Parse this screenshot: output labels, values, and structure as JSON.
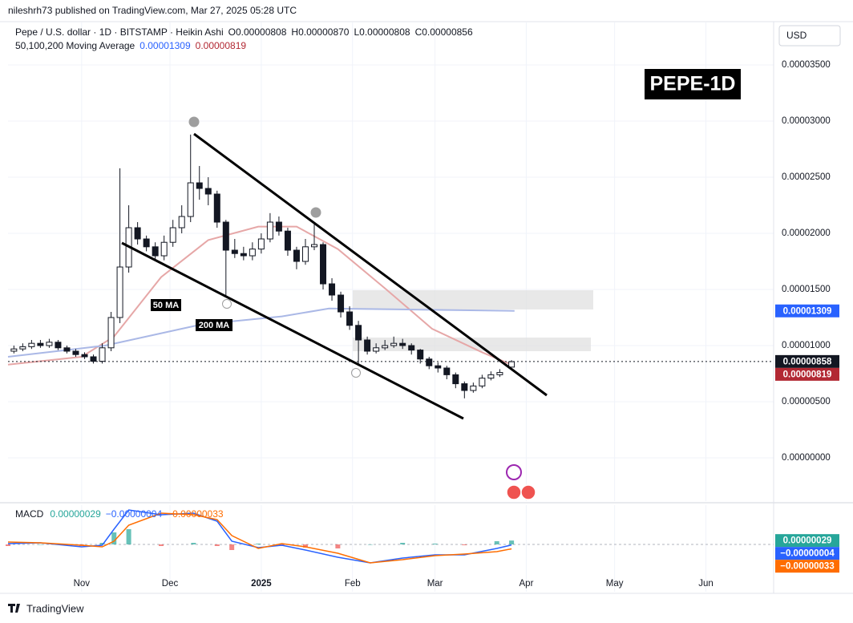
{
  "header": "nileshrh73 published on TradingView.com, Mar 27, 2025 05:28 UTC",
  "currency": "USD",
  "badge": "PEPE-1D",
  "footer": "TradingView",
  "chart_data": [
    {
      "type": "candlestick",
      "title": "Pepe / U.S. dollar · 1D · BITSTAMP · Heikin Ashi",
      "ohlc_letters": [
        "O",
        "H",
        "L",
        "C"
      ],
      "ohlc": [
        {
          "value": 8.08e-06,
          "label": "0.00000808"
        },
        {
          "value": 8.7e-06,
          "label": "0.00000870"
        },
        {
          "value": 8.08e-06,
          "label": "0.00000808"
        },
        {
          "value": 8.56e-06,
          "label": "0.00000856"
        }
      ],
      "ma_title": "50,100,200 Moving Average",
      "color": "#131722",
      "x": [
        -84,
        -81,
        -78,
        -75,
        -72,
        -69,
        -66,
        -63,
        -60,
        -57,
        -54,
        -51,
        -48,
        -45,
        -42,
        -39,
        -36,
        -33,
        -30,
        -27,
        -24,
        -21,
        -18,
        -15,
        -12,
        -9,
        -6,
        -3,
        0,
        3,
        6,
        9,
        12,
        15,
        18,
        21,
        24,
        27,
        30,
        33,
        36,
        39,
        42,
        45,
        48,
        51,
        54,
        57,
        60,
        63,
        66,
        69,
        72,
        75,
        78,
        81,
        85
      ],
      "open": [
        9.5e-06,
        9.7e-06,
        9.9e-06,
        1.02e-05,
        1e-05,
        1.03e-05,
        9.8e-06,
        9.5e-06,
        9.2e-06,
        9e-06,
        8.6e-06,
        9.8e-06,
        1.25e-05,
        1.7e-05,
        2.05e-05,
        1.95e-05,
        1.88e-05,
        1.8e-05,
        1.92e-05,
        2.05e-05,
        2.15e-05,
        2.45e-05,
        2.4e-05,
        2.35e-05,
        2.1e-05,
        1.85e-05,
        1.82e-05,
        1.8e-05,
        1.86e-05,
        1.95e-05,
        2.1e-05,
        2.02e-05,
        1.85e-05,
        1.75e-05,
        1.88e-05,
        1.9e-05,
        1.55e-05,
        1.45e-05,
        1.3e-05,
        1.18e-05,
        1.05e-05,
        9.5e-06,
        9.8e-06,
        1e-05,
        1.02e-05,
        1e-05,
        9.6e-06,
        8.8e-06,
        8.2e-06,
        8e-06,
        7.4e-06,
        6.6e-06,
        6e-06,
        6.4e-06,
        7.1e-06,
        7.4e-06,
        8.08e-06
      ],
      "high": [
        1e-05,
        1.02e-05,
        1.05e-05,
        1.05e-05,
        1.06e-05,
        1.05e-05,
        1e-05,
        9.7e-06,
        9.4e-06,
        9.2e-06,
        1.02e-05,
        1.3e-05,
        2.58e-05,
        2.25e-05,
        2.1e-05,
        1.98e-05,
        1.92e-05,
        1.98e-05,
        2.12e-05,
        2.25e-05,
        2.88e-05,
        2.6e-05,
        2.5e-05,
        2.38e-05,
        2.12e-05,
        1.95e-05,
        1.88e-05,
        1.92e-05,
        2e-05,
        2.18e-05,
        2.15e-05,
        2.05e-05,
        1.88e-05,
        1.95e-05,
        2.1e-05,
        1.92e-05,
        1.6e-05,
        1.48e-05,
        1.35e-05,
        1.22e-05,
        1.08e-05,
        1.02e-05,
        1.05e-05,
        1.08e-05,
        1.06e-05,
        1.02e-05,
        9.7e-06,
        9e-06,
        8.5e-06,
        8.2e-06,
        7.6e-06,
        6.8e-06,
        6.7e-06,
        7.4e-06,
        7.7e-06,
        7.9e-06,
        8.7e-06
      ],
      "low": [
        9.3e-06,
        9.5e-06,
        9.7e-06,
        9.8e-06,
        9.8e-06,
        9.6e-06,
        9.3e-06,
        9e-06,
        8.8e-06,
        8.4e-06,
        8.4e-06,
        9.5e-06,
        1.2e-05,
        1.65e-05,
        1.9e-05,
        1.84e-05,
        1.75e-05,
        1.76e-05,
        1.88e-05,
        2e-05,
        2.1e-05,
        2.3e-05,
        2.25e-05,
        2.05e-05,
        1.43e-05,
        1.78e-05,
        1.76e-05,
        1.76e-05,
        1.82e-05,
        1.92e-05,
        1.98e-05,
        1.8e-05,
        1.68e-05,
        1.72e-05,
        1.85e-05,
        1.5e-05,
        1.4e-05,
        1.25e-05,
        1.14e-05,
        8.2e-06,
        9.2e-06,
        9.3e-06,
        9.6e-06,
        9.8e-06,
        9.7e-06,
        9.2e-06,
        8.4e-06,
        7.9e-06,
        7.6e-06,
        7e-06,
        6.2e-06,
        5.3e-06,
        5.8e-06,
        6.2e-06,
        6.9e-06,
        7.2e-06,
        8.08e-06
      ],
      "close": [
        9.7e-06,
        9.9e-06,
        1.02e-05,
        1e-05,
        1.03e-05,
        9.8e-06,
        9.5e-06,
        9.2e-06,
        9e-06,
        8.6e-06,
        9.8e-06,
        1.25e-05,
        1.7e-05,
        2.05e-05,
        1.95e-05,
        1.88e-05,
        1.8e-05,
        1.92e-05,
        2.05e-05,
        2.15e-05,
        2.45e-05,
        2.4e-05,
        2.35e-05,
        2.1e-05,
        1.85e-05,
        1.82e-05,
        1.8e-05,
        1.86e-05,
        1.95e-05,
        2.1e-05,
        2.02e-05,
        1.85e-05,
        1.75e-05,
        1.88e-05,
        1.9e-05,
        1.55e-05,
        1.45e-05,
        1.3e-05,
        1.18e-05,
        1.05e-05,
        9.5e-06,
        9.8e-06,
        1e-05,
        1.02e-05,
        1e-05,
        9.6e-06,
        8.8e-06,
        8.2e-06,
        8e-06,
        7.4e-06,
        6.6e-06,
        6e-06,
        6.4e-06,
        7.1e-06,
        7.4e-06,
        7.6e-06,
        8.56e-06
      ],
      "series": [
        {
          "name": "50 MA",
          "color": "#e6a7a7",
          "x": [
            -86,
            -61,
            -50,
            -34,
            -18,
            -1,
            12,
            26,
            42,
            58,
            75,
            86
          ],
          "values": [
            8.3e-06,
            9e-06,
            1.08e-05,
            1.61e-05,
            1.94e-05,
            2.06e-05,
            2.06e-05,
            1.86e-05,
            1.51e-05,
            1.15e-05,
            9.4e-06,
            8.19e-06
          ]
        },
        {
          "name": "200 MA",
          "color": "#aab8e6",
          "x": [
            -86,
            -53,
            -20,
            7,
            23,
            86
          ],
          "values": [
            9e-06,
            1e-05,
            1.19e-05,
            1.26e-05,
            1.33e-05,
            1.309e-05
          ]
        }
      ],
      "last_labels": [
        {
          "value": 1.309e-05,
          "color": "#2962ff"
        },
        {
          "value": 8.58e-06,
          "color": "#131722"
        },
        {
          "value": 8.19e-06,
          "color": "#b22833"
        }
      ],
      "xlim": [
        -86,
        174
      ],
      "ylim": [
        -3.86e-06,
        3.879e-05
      ],
      "yticks": [
        {
          "value": 0,
          "label": "0.00000000"
        },
        {
          "value": 5e-06,
          "label": "0.00000500"
        },
        {
          "value": 1e-05,
          "label": "0.00001000"
        },
        {
          "value": 1.5e-05,
          "label": "0.00001500"
        },
        {
          "value": 2e-05,
          "label": "0.00002000"
        },
        {
          "value": 2.5e-05,
          "label": "0.00002500"
        },
        {
          "value": 3e-05,
          "label": "0.00003000"
        },
        {
          "value": 3.5e-05,
          "label": "0.00003500"
        }
      ],
      "xticks": [
        {
          "value": -61,
          "label": "Nov"
        },
        {
          "value": -31,
          "label": "Dec"
        },
        {
          "value": 0,
          "label": "2025"
        },
        {
          "value": 31,
          "label": "Feb"
        },
        {
          "value": 59,
          "label": "Mar"
        },
        {
          "value": 90,
          "label": "Apr"
        },
        {
          "value": 120,
          "label": "May"
        },
        {
          "value": 151,
          "label": "Jun"
        }
      ],
      "grid": true
    },
    {
      "type": "macd",
      "title": "MACD",
      "x": [
        -86,
        -75,
        -61,
        -54,
        -50,
        -45,
        -34,
        -23,
        -15,
        -10,
        -1,
        7,
        15,
        26,
        37,
        48,
        59,
        69,
        80,
        85
      ],
      "series": [
        {
          "name": "Histogram",
          "color": "#26a69a",
          "negative_color": "#ef5350",
          "values": [
            -1.2e-07,
            0,
            -1.2e-07,
            1.2e-07,
            9e-07,
            1.14e-06,
            -1.2e-07,
            1.2e-07,
            -1.2e-07,
            -4.2e-07,
            6e-08,
            -1.2e-07,
            -2.4e-07,
            -3e-07,
            0,
            1.2e-07,
            6e-08,
            -6e-08,
            2.4e-07,
            2.9e-07
          ]
        },
        {
          "name": "MACD",
          "color": "#2962ff",
          "values": [
            6e-08,
            1.2e-07,
            -1.8e-07,
            -6e-08,
            1.14e-06,
            2.58e-06,
            2.22e-06,
            2.34e-06,
            1.74e-06,
            2.4e-07,
            -2.4e-07,
            -6e-08,
            -4.2e-07,
            -9.6e-07,
            -1.38e-06,
            -1.02e-06,
            -7.8e-07,
            -7.8e-07,
            -3e-07,
            -4e-08
          ]
        },
        {
          "name": "Signal",
          "color": "#ff6d00",
          "values": [
            1.8e-07,
            1.2e-07,
            -6e-08,
            -1.8e-07,
            2.4e-07,
            1.44e-06,
            2.34e-06,
            2.22e-06,
            1.86e-06,
            6.6e-07,
            -3e-07,
            6e-08,
            -1.8e-07,
            -6.6e-07,
            -1.38e-06,
            -1.14e-06,
            -8.4e-07,
            -7.2e-07,
            -5.4e-07,
            -3.3e-07
          ]
        }
      ],
      "last_labels": [
        {
          "value": 2.9e-07,
          "label": "0.00000029",
          "color": "#26a69a"
        },
        {
          "value": -4e-08,
          "label": "−0.00000004",
          "color": "#2962ff"
        },
        {
          "value": -3.3e-07,
          "label": "−0.00000033",
          "color": "#ff6d00"
        }
      ],
      "ylim": [
        -2.94e-06,
        2.94e-06
      ]
    }
  ]
}
